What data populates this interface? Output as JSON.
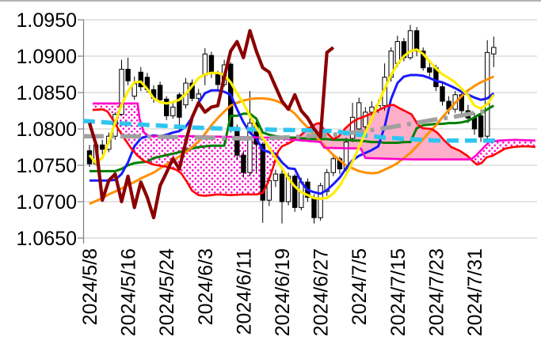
{
  "chart_data": {
    "type": "candlestick",
    "title": "",
    "grid": true,
    "legend": "none",
    "ylabel": "",
    "xlabel": "",
    "ylim": [
      1.065,
      1.0977
    ],
    "y_ticks": [
      "1.0950",
      "1.0900",
      "1.0850",
      "1.0800",
      "1.0750",
      "1.0700",
      "1.0650"
    ],
    "y_tick_values": [
      1.095,
      1.09,
      1.085,
      1.08,
      1.075,
      1.07,
      1.065
    ],
    "x_tick_labels": [
      "2024/5/8",
      "2024/5/16",
      "2024/5/24",
      "2024/6/3",
      "2024/6/11",
      "2024/6/19",
      "2024/6/27",
      "2024/7/5",
      "2024/7/15",
      "2024/7/23",
      "2024/7/31"
    ],
    "x_tick_indices": [
      0,
      6,
      12,
      18,
      24,
      30,
      36,
      42,
      48,
      54,
      60
    ],
    "candles": {
      "up_fill": "#ffffff",
      "down_fill": "#000000",
      "outline": "#000000",
      "open": [
        1.077,
        1.0752,
        1.0778,
        1.0772,
        1.079,
        1.082,
        1.0882,
        1.0845,
        1.0878,
        1.0871,
        1.0854,
        1.086,
        1.0841,
        1.0818,
        1.0847,
        1.0833,
        1.0863,
        1.0842,
        1.0874,
        1.0901,
        1.0876,
        1.0861,
        1.0889,
        1.08,
        1.0764,
        1.074,
        1.0808,
        1.0779,
        1.0702,
        1.0729,
        1.0738,
        1.07,
        1.0735,
        1.0692,
        1.0727,
        1.0706,
        1.0678,
        1.0714,
        1.074,
        1.0759,
        1.0745,
        1.0787,
        1.08,
        1.0803,
        1.0823,
        1.0826,
        1.0832,
        1.0871,
        1.089,
        1.092,
        1.0898,
        1.0935,
        1.0907,
        1.0884,
        1.0884,
        1.0858,
        1.0838,
        1.0827,
        1.0847,
        1.0825,
        1.0815,
        1.0818,
        1.079,
        1.0903
      ],
      "high": [
        1.0778,
        1.0782,
        1.0785,
        1.0795,
        1.0823,
        1.0895,
        1.0898,
        1.0872,
        1.0885,
        1.0877,
        1.086,
        1.0865,
        1.0845,
        1.0836,
        1.085,
        1.087,
        1.0868,
        1.0855,
        1.0911,
        1.0906,
        1.088,
        1.0895,
        1.0892,
        1.0806,
        1.077,
        1.0852,
        1.0816,
        1.0782,
        1.0735,
        1.0744,
        1.0745,
        1.074,
        1.0738,
        1.0733,
        1.0732,
        1.071,
        1.0726,
        1.0745,
        1.0765,
        1.0762,
        1.0788,
        1.0836,
        1.0843,
        1.083,
        1.0838,
        1.084,
        1.089,
        1.0912,
        1.0928,
        1.0925,
        1.0943,
        1.094,
        1.0912,
        1.0893,
        1.0888,
        1.0864,
        1.0845,
        1.0852,
        1.0852,
        1.0833,
        1.0822,
        1.0825,
        1.0922,
        1.0927
      ],
      "low": [
        1.0748,
        1.075,
        1.0765,
        1.0768,
        1.0785,
        1.0818,
        1.086,
        1.084,
        1.0852,
        1.085,
        1.0836,
        1.0835,
        1.0812,
        1.0814,
        1.0798,
        1.0828,
        1.0838,
        1.083,
        1.086,
        1.087,
        1.0852,
        1.0858,
        1.0795,
        1.0758,
        1.0733,
        1.0735,
        1.074,
        1.0671,
        1.0694,
        1.072,
        1.067,
        1.0695,
        1.0686,
        1.0688,
        1.07,
        1.067,
        1.0674,
        1.0708,
        1.0735,
        1.0738,
        1.0742,
        1.0782,
        1.0795,
        1.0798,
        1.0818,
        1.0822,
        1.0825,
        1.0865,
        1.0885,
        1.0893,
        1.0895,
        1.09,
        1.088,
        1.0872,
        1.0852,
        1.0832,
        1.082,
        1.0822,
        1.0818,
        1.0808,
        1.0792,
        1.0782,
        1.0778,
        1.0885
      ],
      "close": [
        1.0752,
        1.0778,
        1.0772,
        1.079,
        1.082,
        1.0882,
        1.0866,
        1.0862,
        1.0858,
        1.0854,
        1.0842,
        1.084,
        1.0818,
        1.083,
        1.0816,
        1.0863,
        1.0842,
        1.0848,
        1.0903,
        1.0876,
        1.0861,
        1.0888,
        1.08,
        1.0764,
        1.074,
        1.0808,
        1.0779,
        1.0702,
        1.0729,
        1.0738,
        1.07,
        1.0735,
        1.0692,
        1.0727,
        1.0706,
        1.0678,
        1.0722,
        1.074,
        1.0759,
        1.0745,
        1.0782,
        1.0816,
        1.0836,
        1.0823,
        1.083,
        1.0832,
        1.0871,
        1.0907,
        1.092,
        1.0898,
        1.0935,
        1.0907,
        1.0884,
        1.0878,
        1.0858,
        1.0838,
        1.0827,
        1.0847,
        1.0825,
        1.0815,
        1.08,
        1.0789,
        1.0905,
        1.0912
      ]
    },
    "series": [
      {
        "name": "green-line",
        "color": "#007f00",
        "width": 3,
        "values": [
          1.0742,
          1.0742,
          1.0742,
          1.0742,
          1.0742,
          1.0745,
          1.075,
          1.0753,
          1.0754,
          1.0755,
          1.076,
          1.0762,
          1.0764,
          1.0766,
          1.0768,
          1.0771,
          1.0773,
          1.0775,
          1.0776,
          1.0777,
          1.0777,
          1.0777,
          1.0818,
          1.0818,
          1.0821,
          1.0821,
          1.0814,
          1.0795,
          1.0792,
          1.079,
          1.0789,
          1.0788,
          1.0788,
          1.0787,
          1.0787,
          1.0786,
          1.0786,
          1.0786,
          1.0785,
          1.0785,
          1.0785,
          1.0784,
          1.0784,
          1.0783,
          1.0782,
          1.0782,
          1.0781,
          1.0781,
          1.0781,
          1.0782,
          1.0782,
          1.0801,
          1.0805,
          1.0806,
          1.0807,
          1.0807,
          1.0808,
          1.0808,
          1.0809,
          1.0811,
          1.0816,
          1.0821,
          1.0827,
          1.0832
        ]
      },
      {
        "name": "orange-line",
        "color": "#ff9000",
        "width": 3,
        "values": [
          1.0697,
          1.0701,
          1.0705,
          1.071,
          1.0714,
          1.0718,
          1.0723,
          1.0727,
          1.0732,
          1.0736,
          1.074,
          1.0746,
          1.0751,
          1.0757,
          1.0762,
          1.0768,
          1.0775,
          1.0783,
          1.0793,
          1.0805,
          1.0815,
          1.0824,
          1.0832,
          1.0836,
          1.0839,
          1.0841,
          1.0842,
          1.0842,
          1.0841,
          1.0839,
          1.0835,
          1.0828,
          1.0821,
          1.0811,
          1.0802,
          1.0792,
          1.0783,
          1.0773,
          1.0764,
          1.0757,
          1.075,
          1.0746,
          1.0742,
          1.074,
          1.0739,
          1.074,
          1.0744,
          1.0748,
          1.0753,
          1.076,
          1.0767,
          1.0776,
          1.0786,
          1.0796,
          1.0805,
          1.0816,
          1.0826,
          1.0836,
          1.0845,
          1.0853,
          1.0859,
          1.0864,
          1.0868,
          1.0872
        ]
      },
      {
        "name": "blue-line",
        "color": "#1a1aff",
        "width": 3,
        "values": [
          1.0729,
          1.0729,
          1.0729,
          1.0729,
          1.073,
          1.0738,
          1.0754,
          1.0776,
          1.0787,
          1.079,
          1.0791,
          1.079,
          1.0792,
          1.0795,
          1.0797,
          1.0803,
          1.0816,
          1.0836,
          1.0849,
          1.0853,
          1.0853,
          1.0851,
          1.0847,
          1.0827,
          1.0809,
          1.0795,
          1.0787,
          1.0771,
          1.0768,
          1.0766,
          1.0754,
          1.0746,
          1.0745,
          1.0727,
          1.0716,
          1.0713,
          1.0711,
          1.0716,
          1.0724,
          1.0733,
          1.0746,
          1.0757,
          1.0763,
          1.0767,
          1.0771,
          1.0776,
          1.0803,
          1.0841,
          1.0863,
          1.0872,
          1.0874,
          1.0874,
          1.0873,
          1.087,
          1.0866,
          1.0864,
          1.086,
          1.0856,
          1.0851,
          1.0847,
          1.0843,
          1.084,
          1.0842,
          1.0849
        ]
      },
      {
        "name": "yellow-line",
        "color": "#ffee00",
        "width": 3.2,
        "values": [
          1.0764,
          1.0753,
          1.076,
          1.0782,
          1.0809,
          1.0833,
          1.0852,
          1.0864,
          1.0865,
          1.0855,
          1.0842,
          1.0837,
          1.0835,
          1.0837,
          1.084,
          1.0848,
          1.0859,
          1.087,
          1.0875,
          1.0877,
          1.0877,
          1.0874,
          1.0864,
          1.0849,
          1.0835,
          1.0818,
          1.0802,
          1.0788,
          1.0774,
          1.076,
          1.0746,
          1.0732,
          1.0721,
          1.0713,
          1.0709,
          1.0705,
          1.0704,
          1.0705,
          1.0711,
          1.0722,
          1.0737,
          1.0755,
          1.0775,
          1.0795,
          1.0814,
          1.0835,
          1.0855,
          1.0874,
          1.0889,
          1.09,
          1.0907,
          1.0909,
          1.0903,
          1.0893,
          1.0883,
          1.0875,
          1.087,
          1.0864,
          1.0855,
          1.0846,
          1.0832,
          1.0828,
          1.0834,
          1.0847
        ]
      }
    ],
    "point_series": [
      {
        "name": "cloud-span-red",
        "color": "#ff0000",
        "width": 2.6,
        "points": [
          [
            0.5,
            1.0826
          ],
          [
            2.0,
            1.0827
          ],
          [
            2.8,
            1.0824
          ],
          [
            3.7,
            1.0812
          ],
          [
            4.6,
            1.0798
          ],
          [
            5.5,
            1.0786
          ],
          [
            6.5,
            1.0773
          ],
          [
            7.5,
            1.0763
          ],
          [
            8.5,
            1.0756
          ],
          [
            10.0,
            1.0751
          ],
          [
            12.0,
            1.0748
          ],
          [
            13.5,
            1.0744
          ],
          [
            14.3,
            1.0739
          ],
          [
            15.2,
            1.0727
          ],
          [
            16.0,
            1.0715
          ],
          [
            17.0,
            1.0709
          ],
          [
            18.0,
            1.0708
          ],
          [
            20.0,
            1.071
          ],
          [
            22.0,
            1.0709
          ],
          [
            24.0,
            1.071
          ],
          [
            26.0,
            1.071
          ],
          [
            27.0,
            1.0712
          ],
          [
            27.8,
            1.0726
          ],
          [
            28.6,
            1.0747
          ],
          [
            29.4,
            1.0769
          ],
          [
            30.0,
            1.0776
          ],
          [
            31.0,
            1.078
          ],
          [
            32.0,
            1.0785
          ],
          [
            33.0,
            1.0792
          ],
          [
            34.2,
            1.0801
          ],
          [
            35.3,
            1.0807
          ],
          [
            35.8,
            1.0808
          ],
          [
            36.5,
            1.08
          ],
          [
            37.3,
            1.0792
          ],
          [
            38.0,
            1.0786
          ],
          [
            38.9,
            1.079
          ],
          [
            39.9,
            1.0801
          ],
          [
            40.9,
            1.0809
          ],
          [
            41.9,
            1.0814
          ],
          [
            42.8,
            1.0817
          ],
          [
            44.1,
            1.0822
          ],
          [
            45.3,
            1.0827
          ],
          [
            46.5,
            1.0832
          ],
          [
            47.4,
            1.0833
          ],
          [
            48.4,
            1.0828
          ],
          [
            49.3,
            1.0824
          ],
          [
            50.2,
            1.082
          ],
          [
            51.1,
            1.0807
          ],
          [
            51.9,
            1.0801
          ],
          [
            53.3,
            1.08
          ],
          [
            54.2,
            1.0795
          ],
          [
            55.2,
            1.0785
          ],
          [
            56.4,
            1.0775
          ],
          [
            57.7,
            1.077
          ],
          [
            58.9,
            1.0763
          ],
          [
            59.6,
            1.0757
          ],
          [
            60.4,
            1.0751
          ],
          [
            61.1,
            1.0753
          ],
          [
            61.9,
            1.0761
          ],
          [
            62.8,
            1.0763
          ],
          [
            63.8,
            1.0768
          ],
          [
            64.8,
            1.0773
          ],
          [
            66.0,
            1.0775
          ],
          [
            67.3,
            1.0776
          ],
          [
            68.5,
            1.0776
          ],
          [
            69.5,
            1.0775
          ]
        ]
      },
      {
        "name": "cloud-span-magenta",
        "color": "#ff00cc",
        "width": 2.6,
        "points": [
          [
            0.5,
            1.0835
          ],
          [
            7.5,
            1.0835
          ],
          [
            7.8,
            1.0814
          ],
          [
            8.5,
            1.0795
          ],
          [
            9.3,
            1.079
          ],
          [
            16.9,
            1.079
          ],
          [
            28.0,
            1.0788
          ],
          [
            36.0,
            1.0782
          ],
          [
            36.6,
            1.0774
          ],
          [
            42.3,
            1.0773
          ],
          [
            43.0,
            1.076
          ],
          [
            50.2,
            1.0758
          ],
          [
            59.4,
            1.0758
          ],
          [
            60.2,
            1.0763
          ],
          [
            61.5,
            1.0775
          ],
          [
            62.3,
            1.0782
          ],
          [
            63.8,
            1.0784
          ],
          [
            66.3,
            1.0785
          ],
          [
            69.5,
            1.0784
          ]
        ]
      },
      {
        "name": "gray-dashdot-line",
        "color": "#a0a0a0",
        "width": 5.5,
        "dash": "26 8 5 8",
        "points": [
          [
            -1.0,
            1.079
          ],
          [
            5,
            1.079
          ],
          [
            12,
            1.0789
          ],
          [
            18,
            1.0788
          ],
          [
            24,
            1.0787
          ],
          [
            30,
            1.0788
          ],
          [
            34,
            1.079
          ],
          [
            38,
            1.0792
          ],
          [
            42,
            1.0796
          ],
          [
            46,
            1.0801
          ],
          [
            50,
            1.0807
          ],
          [
            54,
            1.0813
          ],
          [
            57,
            1.0817
          ],
          [
            60,
            1.0822
          ],
          [
            62,
            1.0825
          ]
        ]
      },
      {
        "name": "cyan-dashed-line",
        "color": "#2fc5ef",
        "width": 5.5,
        "dash": "15 8",
        "points": [
          [
            -1.0,
            1.0811
          ],
          [
            4,
            1.0808
          ],
          [
            10,
            1.0805
          ],
          [
            16,
            1.0802
          ],
          [
            22,
            1.08
          ],
          [
            28,
            1.0799
          ],
          [
            34,
            1.0798
          ],
          [
            38,
            1.0797
          ],
          [
            42,
            1.0792
          ],
          [
            46,
            1.0788
          ],
          [
            50,
            1.0786
          ],
          [
            54,
            1.0784
          ],
          [
            58,
            1.0784
          ],
          [
            63.5,
            1.0784
          ]
        ]
      }
    ],
    "lagging_line": {
      "name": "darkred-lagging-line",
      "color": "#8b0000",
      "width": 4.2,
      "shift": 25
    },
    "cloud": {
      "solid_fill": "#ffafc9",
      "dotted_bg": "#ffffff",
      "dotted_dot_color": "#ff00cc",
      "upper_boundary": "cloud-span-magenta",
      "lower_boundary": "cloud-span-red",
      "rule": "dotted where magenta above red, solid pink where red above magenta"
    },
    "axis": {
      "line_color": "#808080",
      "grid_color": "#c8c8c8",
      "label_color": "#000000",
      "top_border_color": "#9a9a9a"
    }
  }
}
